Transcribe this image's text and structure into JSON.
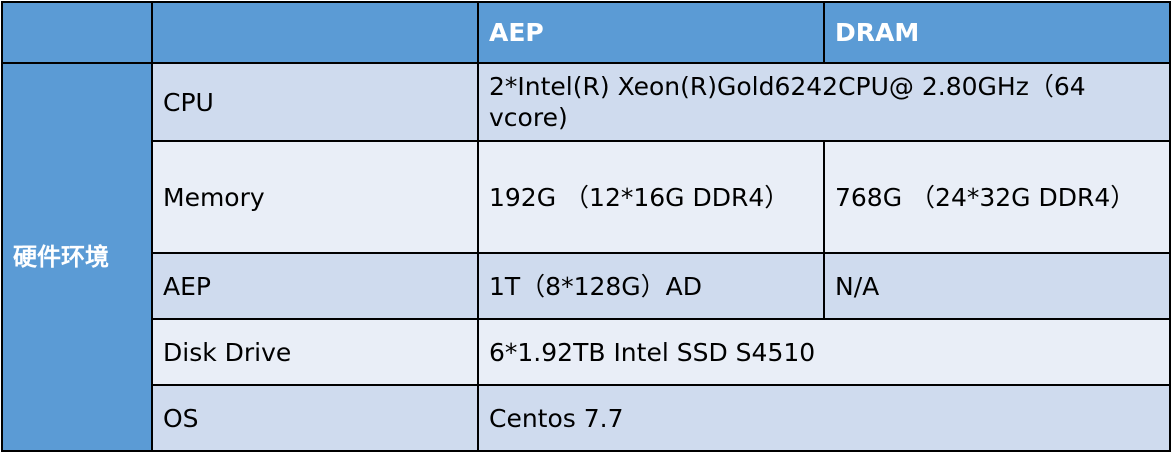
{
  "header": {
    "col1": "",
    "col2": "",
    "aep": "AEP",
    "dram": "DRAM"
  },
  "section_label": "硬件环境",
  "rows": [
    {
      "label": "CPU",
      "value": "2*Intel(R) Xeon(R)Gold6242CPU@ 2.80GHz（64 vcore)"
    },
    {
      "label": "Memory",
      "aep": "192G （12*16G DDR4）",
      "dram": "768G （24*32G DDR4）"
    },
    {
      "label": "AEP",
      "aep": "1T（8*128G）AD",
      "dram": "N/A"
    },
    {
      "label": "Disk Drive",
      "value": "6*1.92TB Intel SSD S4510"
    },
    {
      "label": "OS",
      "value": "Centos 7.7"
    }
  ],
  "colors": {
    "header": "#5b9bd5",
    "row_dark": "#cfdbee",
    "row_light": "#e9eef7"
  }
}
